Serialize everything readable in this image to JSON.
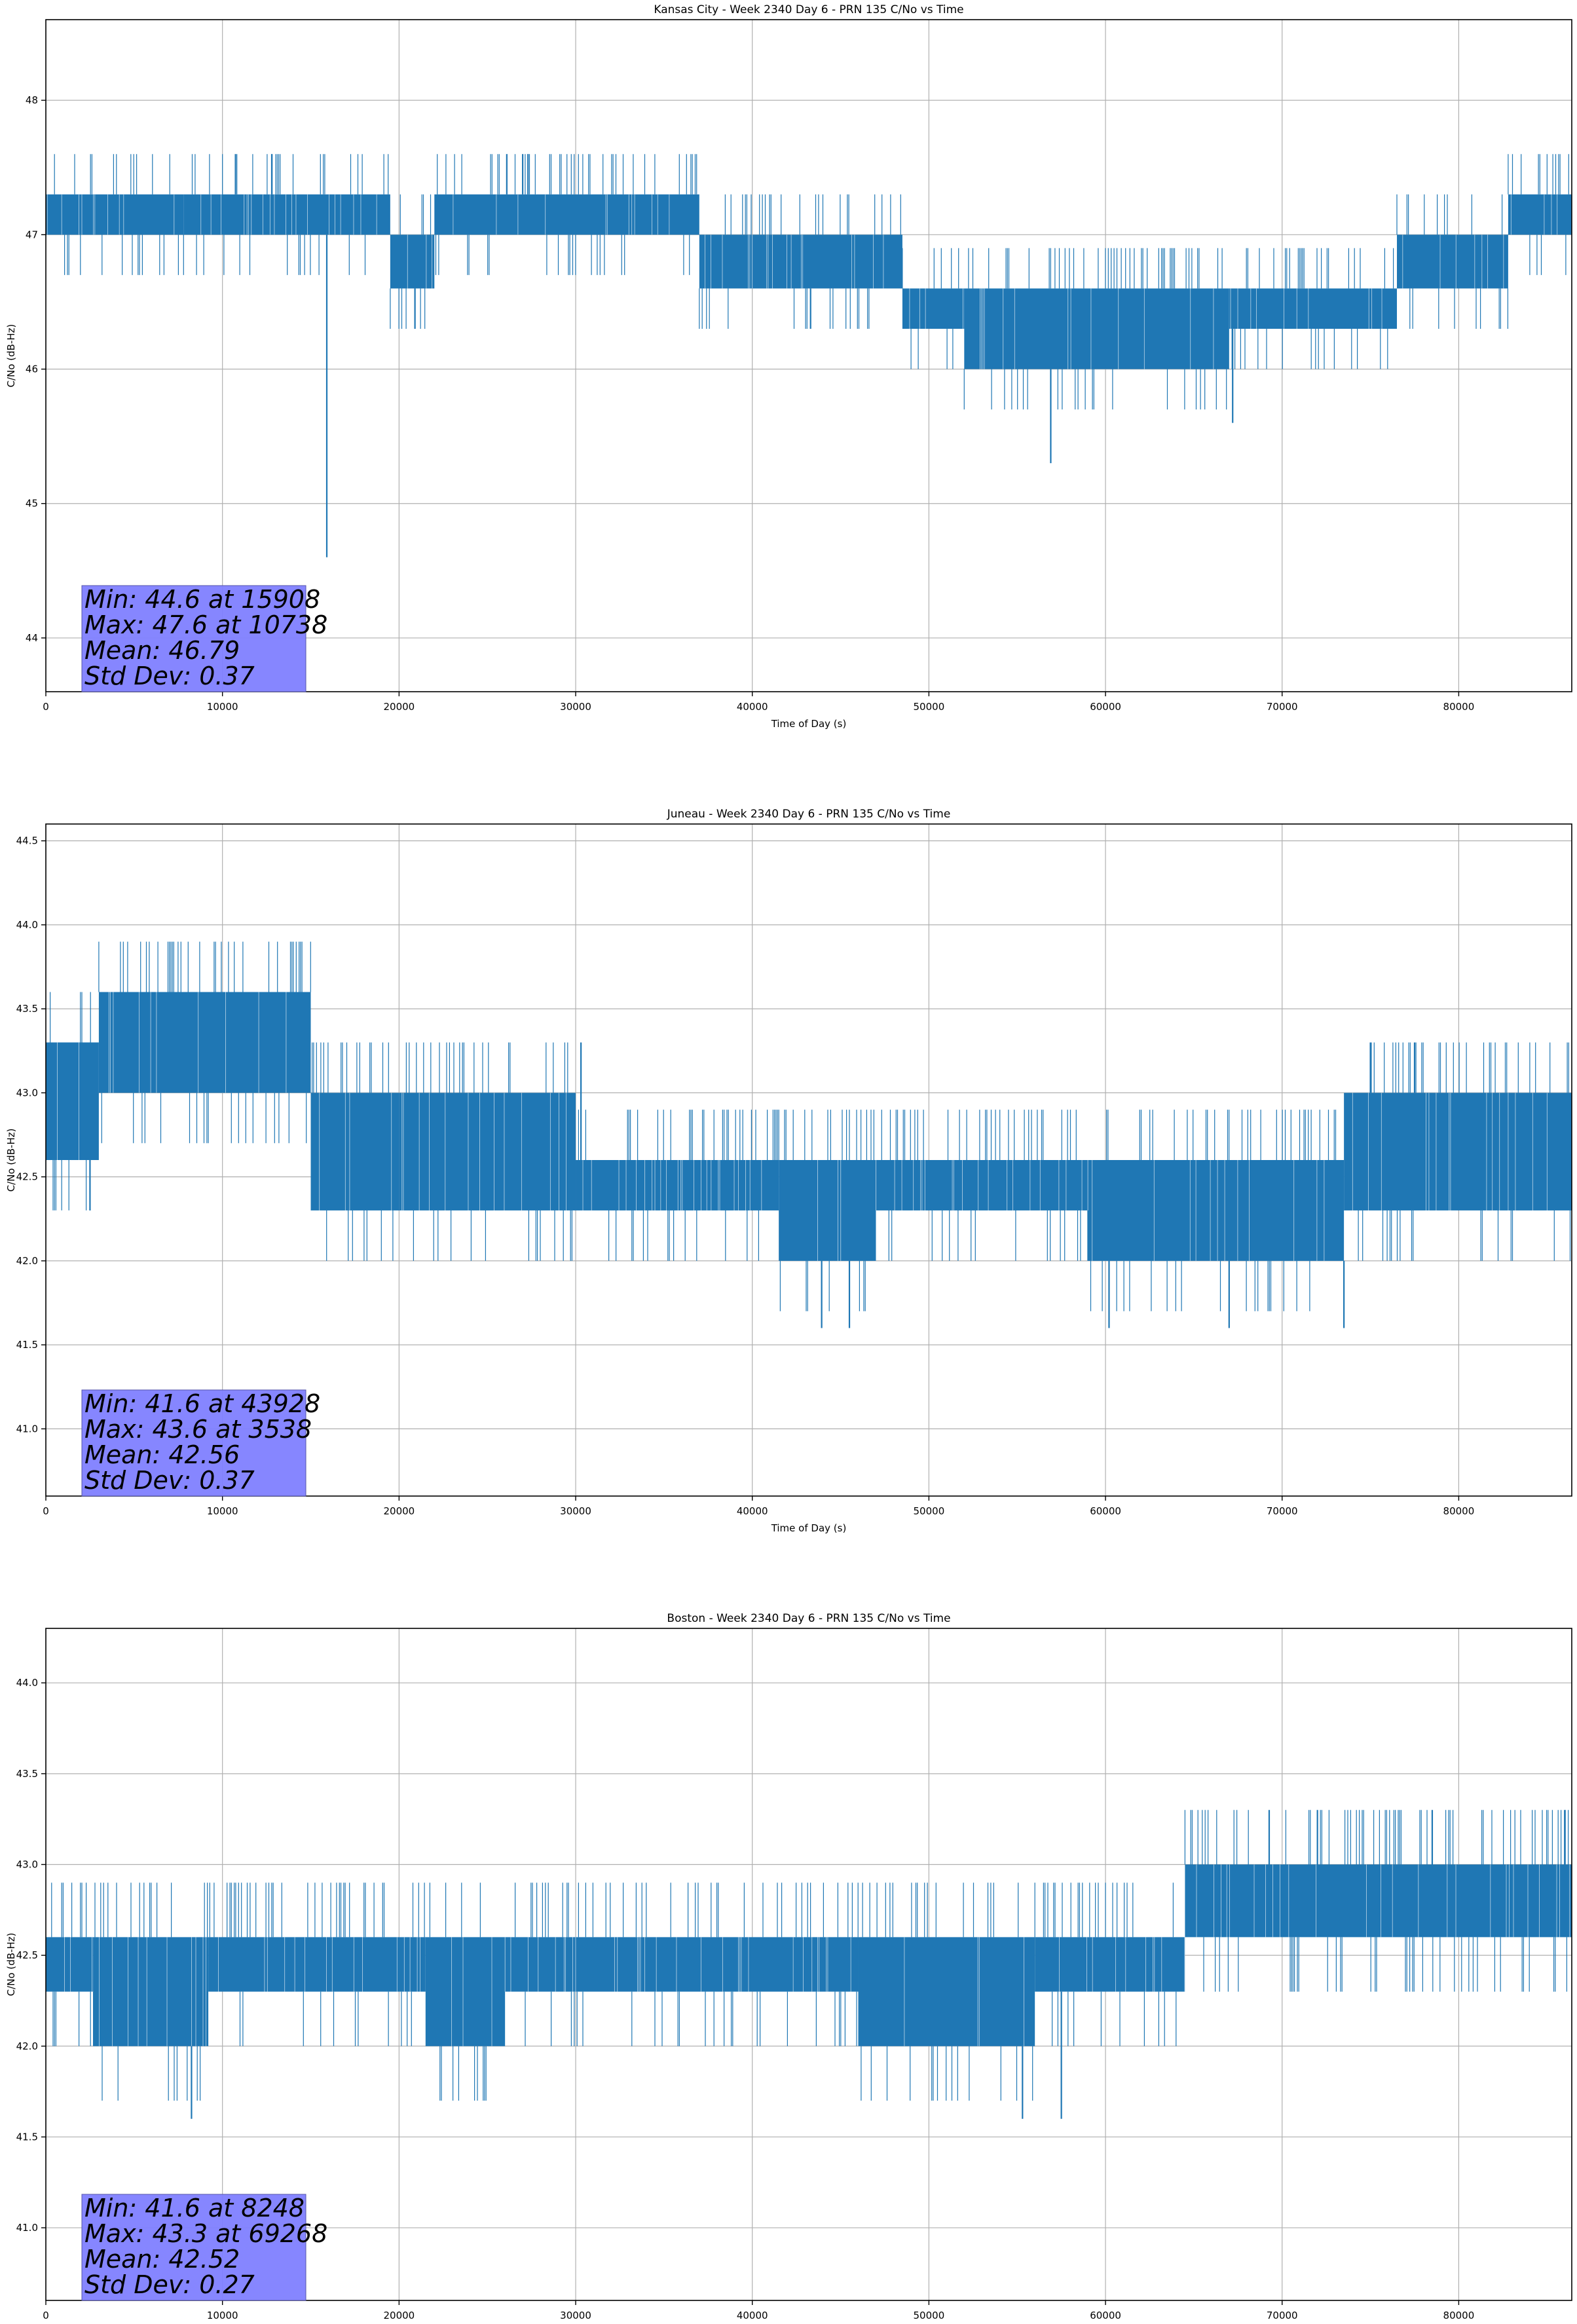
{
  "chart_data": [
    {
      "type": "line",
      "title": "Kansas City - Week 2340 Day 6 - PRN 135 C/No vs Time",
      "xlabel": "Time of Day (s)",
      "ylabel": "C/No (dB-Hz)",
      "xlim": [
        0,
        86400
      ],
      "ylim": [
        43.6,
        48.6
      ],
      "xticks": [
        0,
        10000,
        20000,
        30000,
        40000,
        50000,
        60000,
        70000,
        80000
      ],
      "yticks": [
        44,
        45,
        46,
        47,
        48
      ],
      "ytick_labels": [
        "44",
        "45",
        "46",
        "47",
        "48"
      ],
      "grid": true,
      "line_color": "#1f77b4",
      "series": [
        {
          "name": "C/No",
          "segments": [
            {
              "x": [
                0,
                7800
              ],
              "lo": 47.0,
              "hi": 47.3
            },
            {
              "x": [
                7800,
                19500
              ],
              "lo": 47.0,
              "hi": 47.3
            },
            {
              "x": [
                19500,
                22000
              ],
              "lo": 46.6,
              "hi": 47.0
            },
            {
              "x": [
                22000,
                37000
              ],
              "lo": 47.0,
              "hi": 47.3
            },
            {
              "x": [
                37000,
                40000
              ],
              "lo": 46.6,
              "hi": 47.0
            },
            {
              "x": [
                40000,
                48500
              ],
              "lo": 46.6,
              "hi": 47.0
            },
            {
              "x": [
                48500,
                52000
              ],
              "lo": 46.3,
              "hi": 46.6
            },
            {
              "x": [
                52000,
                67000
              ],
              "lo": 46.0,
              "hi": 46.6
            },
            {
              "x": [
                67000,
                76500
              ],
              "lo": 46.3,
              "hi": 46.6
            },
            {
              "x": [
                76500,
                82800
              ],
              "lo": 46.6,
              "hi": 47.0
            },
            {
              "x": [
                82800,
                86400
              ],
              "lo": 47.0,
              "hi": 47.3
            }
          ],
          "spikes": [
            {
              "x": 15908,
              "y": 44.6
            },
            {
              "x": 10738,
              "y": 47.6
            },
            {
              "x": 12800,
              "y": 47.6
            },
            {
              "x": 26100,
              "y": 47.6
            },
            {
              "x": 27000,
              "y": 47.6
            },
            {
              "x": 27300,
              "y": 47.6
            },
            {
              "x": 20900,
              "y": 46.3
            },
            {
              "x": 43300,
              "y": 46.3
            },
            {
              "x": 56900,
              "y": 45.3
            },
            {
              "x": 67200,
              "y": 45.6
            }
          ]
        }
      ],
      "stats": {
        "min": "Min: 44.6 at 15908",
        "max": "Max: 47.6 at 10738",
        "mean": "Mean: 46.79",
        "std": "Std Dev: 0.37"
      },
      "stats_box_color": "#7f7fff"
    },
    {
      "type": "line",
      "title": "Juneau - Week 2340 Day 6 - PRN 135 C/No vs Time",
      "xlabel": "Time of Day (s)",
      "ylabel": "C/No (dB-Hz)",
      "xlim": [
        0,
        86400
      ],
      "ylim": [
        40.6,
        44.6
      ],
      "xticks": [
        0,
        10000,
        20000,
        30000,
        40000,
        50000,
        60000,
        70000,
        80000
      ],
      "yticks": [
        41.0,
        41.5,
        42.0,
        42.5,
        43.0,
        43.5,
        44.0,
        44.5
      ],
      "ytick_labels": [
        "41.0",
        "41.5",
        "42.0",
        "42.5",
        "43.0",
        "43.5",
        "44.0",
        "44.5"
      ],
      "grid": true,
      "line_color": "#1f77b4",
      "series": [
        {
          "name": "C/No",
          "segments": [
            {
              "x": [
                0,
                3000
              ],
              "lo": 42.6,
              "hi": 43.3
            },
            {
              "x": [
                3000,
                15000
              ],
              "lo": 43.0,
              "hi": 43.6
            },
            {
              "x": [
                15000,
                20000
              ],
              "lo": 42.3,
              "hi": 43.0
            },
            {
              "x": [
                20000,
                30000
              ],
              "lo": 42.3,
              "hi": 43.0
            },
            {
              "x": [
                30000,
                41500
              ],
              "lo": 42.3,
              "hi": 42.6
            },
            {
              "x": [
                41500,
                47000
              ],
              "lo": 42.0,
              "hi": 42.6
            },
            {
              "x": [
                47000,
                59000
              ],
              "lo": 42.3,
              "hi": 42.6
            },
            {
              "x": [
                59000,
                73500
              ],
              "lo": 42.0,
              "hi": 42.6
            },
            {
              "x": [
                73500,
                86400
              ],
              "lo": 42.3,
              "hi": 43.0
            }
          ],
          "spikes": [
            {
              "x": 43928,
              "y": 41.6
            },
            {
              "x": 45500,
              "y": 41.6
            },
            {
              "x": 3538,
              "y": 43.6
            },
            {
              "x": 2500,
              "y": 42.3
            },
            {
              "x": 30300,
              "y": 43.3
            },
            {
              "x": 60200,
              "y": 41.6
            },
            {
              "x": 67000,
              "y": 41.6
            },
            {
              "x": 73500,
              "y": 41.6
            },
            {
              "x": 75000,
              "y": 43.3
            },
            {
              "x": 77500,
              "y": 43.3
            }
          ]
        }
      ],
      "stats": {
        "min": "Min: 41.6 at 43928",
        "max": "Max: 43.6 at 3538",
        "mean": "Mean: 42.56",
        "std": "Std Dev: 0.37"
      },
      "stats_box_color": "#7f7fff"
    },
    {
      "type": "line",
      "title": "Boston - Week 2340 Day 6 - PRN 135 C/No vs Time",
      "xlabel": "Time of Day (s)",
      "ylabel": "C/No (dB-Hz)",
      "xlim": [
        0,
        86400
      ],
      "ylim": [
        40.6,
        44.3
      ],
      "xticks": [
        0,
        10000,
        20000,
        30000,
        40000,
        50000,
        60000,
        70000,
        80000
      ],
      "yticks": [
        41.0,
        41.5,
        42.0,
        42.5,
        43.0,
        43.5,
        44.0
      ],
      "ytick_labels": [
        "41.0",
        "41.5",
        "42.0",
        "42.5",
        "43.0",
        "43.5",
        "44.0"
      ],
      "grid": true,
      "line_color": "#1f77b4",
      "series": [
        {
          "name": "C/No",
          "segments": [
            {
              "x": [
                0,
                2700
              ],
              "lo": 42.3,
              "hi": 42.6
            },
            {
              "x": [
                2700,
                9200
              ],
              "lo": 42.0,
              "hi": 42.6
            },
            {
              "x": [
                9200,
                21500
              ],
              "lo": 42.3,
              "hi": 42.6
            },
            {
              "x": [
                21500,
                26000
              ],
              "lo": 42.0,
              "hi": 42.6
            },
            {
              "x": [
                26000,
                46000
              ],
              "lo": 42.3,
              "hi": 42.6
            },
            {
              "x": [
                46000,
                56000
              ],
              "lo": 42.0,
              "hi": 42.6
            },
            {
              "x": [
                56000,
                64500
              ],
              "lo": 42.3,
              "hi": 42.6
            },
            {
              "x": [
                64500,
                86400
              ],
              "lo": 42.6,
              "hi": 43.0
            }
          ],
          "spikes": [
            {
              "x": 8248,
              "y": 41.6
            },
            {
              "x": 55300,
              "y": 41.6
            },
            {
              "x": 57500,
              "y": 41.6
            },
            {
              "x": 69268,
              "y": 43.3
            },
            {
              "x": 72000,
              "y": 43.3
            },
            {
              "x": 78500,
              "y": 43.3
            },
            {
              "x": 86000,
              "y": 43.3
            }
          ]
        }
      ],
      "stats": {
        "min": "Min: 41.6 at 8248",
        "max": "Max: 43.3 at 69268",
        "mean": "Mean: 42.52",
        "std": "Std Dev: 0.27"
      },
      "stats_box_color": "#7f7fff"
    }
  ]
}
